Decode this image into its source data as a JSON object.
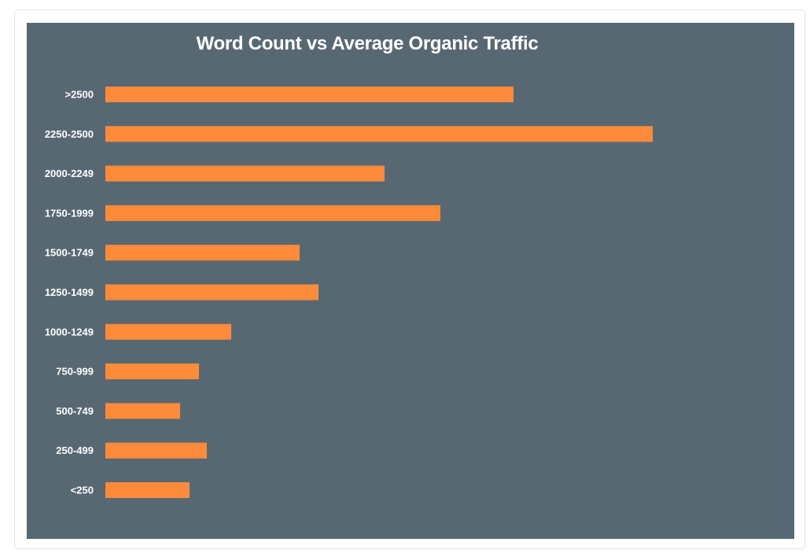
{
  "chart_data": {
    "type": "bar",
    "orientation": "horizontal",
    "title": "Word Count vs Average Organic Traffic",
    "xlabel": "",
    "ylabel": "",
    "categories": [
      ">2500",
      "2250-2500",
      "2000-2249",
      "1750-1999",
      "1500-1749",
      "1250-1499",
      "1000-1249",
      "750-999",
      "500-749",
      "250-499",
      "<250"
    ],
    "values": [
      519,
      696,
      355,
      426,
      247,
      271,
      160,
      119,
      95,
      129,
      107
    ],
    "xlim": [
      0,
      875
    ],
    "grid": false,
    "legend": "none",
    "colors": {
      "bar": "#fd8b3b",
      "background": "#586873",
      "text": "#ffffff"
    }
  }
}
